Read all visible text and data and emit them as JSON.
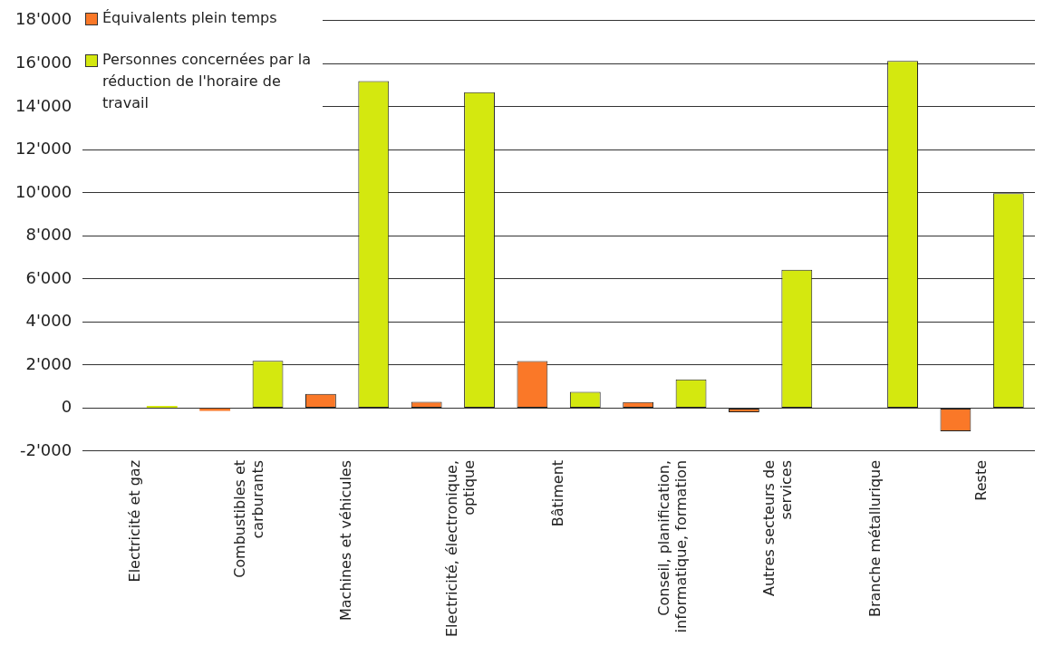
{
  "chart_data": {
    "type": "bar",
    "categories": [
      "Electricité et gaz",
      "Combustibles et carburants",
      "Machines et véhicules",
      "Electricité, électronique, optique",
      "Bâtiment",
      "Conseil, planification, informatique, formation",
      "Autres secteurs de services",
      "Branche métallurique",
      "Reste"
    ],
    "series": [
      {
        "name": "Équivalents plein temps",
        "color": "#fa7828",
        "values": [
          null,
          -130,
          660,
          290,
          2190,
          280,
          -190,
          null,
          -1080
        ]
      },
      {
        "name": "Personnes concernées par la réduction de l'horaire de travail",
        "color": "#d4e80f",
        "values": [
          100,
          2200,
          15190,
          14680,
          750,
          1330,
          6430,
          16130,
          9980
        ]
      }
    ],
    "ylim": [
      -2000,
      18000
    ],
    "yticks": [
      {
        "value": -2000,
        "label": "-2'000"
      },
      {
        "value": 0,
        "label": "0"
      },
      {
        "value": 2000,
        "label": "2'000"
      },
      {
        "value": 4000,
        "label": "4'000"
      },
      {
        "value": 6000,
        "label": "6'000"
      },
      {
        "value": 8000,
        "label": "8'000"
      },
      {
        "value": 10000,
        "label": "10'000"
      },
      {
        "value": 12000,
        "label": "12'000"
      },
      {
        "value": 14000,
        "label": "14'000"
      },
      {
        "value": 16000,
        "label": "16'000"
      },
      {
        "value": 18000,
        "label": "18'000"
      }
    ],
    "grid": "y",
    "legend": "top left"
  }
}
